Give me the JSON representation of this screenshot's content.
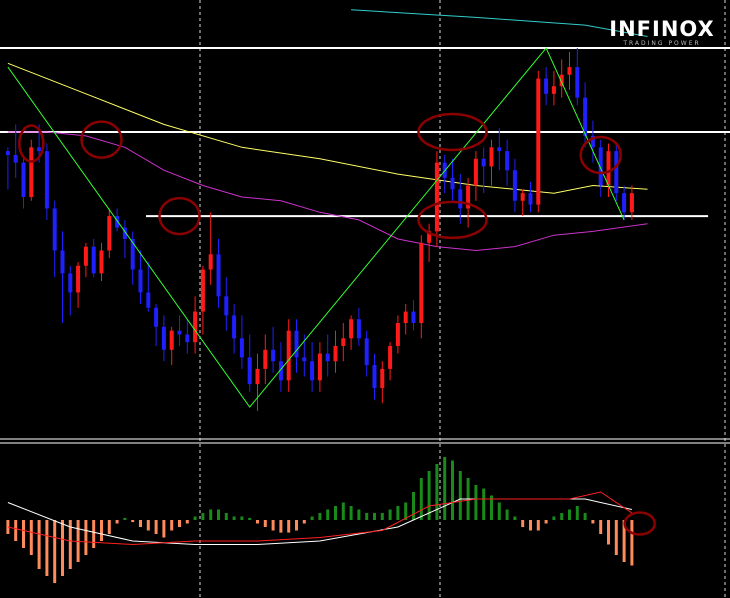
{
  "logo": {
    "brand": "INFINOX",
    "tagline": "TRADING POWER"
  },
  "chart_data": {
    "type": "candlestick",
    "title": "",
    "xlabel": "",
    "ylabel": "",
    "grid": false,
    "colors": {
      "bull": "#ff1a1a",
      "bear": "#2020ff",
      "background": "#000000",
      "level": "#ffffff",
      "zigzag": "#33ff33",
      "ma_fast": "#ffff66",
      "ma_mid": "#cc33cc",
      "ma_slow": "#33cccc",
      "marker": "#8b0000",
      "histogram_pos": "#1a8a1a",
      "histogram_neg": "#ff8a5c",
      "macd": "#ffffff",
      "signal": "#ff2020"
    },
    "price_ylim": [
      0,
      100
    ],
    "candles": [
      [
        73,
        74,
        63,
        72
      ],
      [
        72,
        80,
        66,
        70
      ],
      [
        70,
        72,
        58,
        61
      ],
      [
        61,
        76,
        60,
        74
      ],
      [
        74,
        80,
        70,
        73
      ],
      [
        73,
        75,
        55,
        58
      ],
      [
        58,
        60,
        40,
        47
      ],
      [
        47,
        52,
        28,
        41
      ],
      [
        41,
        43,
        30,
        36
      ],
      [
        36,
        44,
        32,
        43
      ],
      [
        43,
        49,
        40,
        48
      ],
      [
        48,
        50,
        40,
        41
      ],
      [
        41,
        49,
        39,
        47
      ],
      [
        47,
        58,
        45,
        56
      ],
      [
        56,
        58,
        52,
        53
      ],
      [
        53,
        55,
        45,
        50
      ],
      [
        50,
        52,
        38,
        42
      ],
      [
        42,
        47,
        33,
        36
      ],
      [
        36,
        44,
        31,
        32
      ],
      [
        32,
        33,
        22,
        27
      ],
      [
        27,
        30,
        18,
        21
      ],
      [
        21,
        27,
        17,
        26
      ],
      [
        26,
        30,
        22,
        25
      ],
      [
        25,
        29,
        20,
        23
      ],
      [
        23,
        35,
        20,
        31
      ],
      [
        31,
        43,
        25,
        42
      ],
      [
        42,
        57,
        38,
        46
      ],
      [
        46,
        50,
        32,
        35
      ],
      [
        35,
        40,
        26,
        30
      ],
      [
        30,
        33,
        20,
        24
      ],
      [
        24,
        30,
        16,
        19
      ],
      [
        19,
        25,
        10,
        12
      ],
      [
        12,
        20,
        5,
        16
      ],
      [
        16,
        25,
        12,
        21
      ],
      [
        21,
        27,
        15,
        18
      ],
      [
        18,
        23,
        10,
        13
      ],
      [
        13,
        29,
        10,
        26
      ],
      [
        26,
        29,
        15,
        19
      ],
      [
        19,
        25,
        14,
        18
      ],
      [
        18,
        23,
        10,
        13
      ],
      [
        13,
        23,
        10,
        20
      ],
      [
        20,
        25,
        14,
        18
      ],
      [
        18,
        26,
        15,
        22
      ],
      [
        22,
        28,
        18,
        24
      ],
      [
        24,
        30,
        21,
        29
      ],
      [
        29,
        32,
        22,
        24
      ],
      [
        24,
        26,
        14,
        17
      ],
      [
        17,
        20,
        8,
        11
      ],
      [
        11,
        18,
        7,
        16
      ],
      [
        16,
        23,
        13,
        22
      ],
      [
        22,
        30,
        20,
        28
      ],
      [
        28,
        33,
        25,
        31
      ],
      [
        31,
        34,
        26,
        28
      ],
      [
        28,
        51,
        24,
        49
      ],
      [
        49,
        54,
        44,
        52
      ],
      [
        52,
        73,
        48,
        70
      ],
      [
        70,
        72,
        62,
        66
      ],
      [
        66,
        71,
        60,
        63
      ],
      [
        63,
        67,
        54,
        58
      ],
      [
        58,
        66,
        53,
        64
      ],
      [
        64,
        73,
        60,
        71
      ],
      [
        71,
        74,
        62,
        69
      ],
      [
        69,
        76,
        64,
        74
      ],
      [
        74,
        79,
        68,
        73
      ],
      [
        73,
        76,
        64,
        68
      ],
      [
        68,
        71,
        57,
        60
      ],
      [
        60,
        63,
        56,
        62
      ],
      [
        62,
        65,
        57,
        59
      ],
      [
        59,
        94,
        57,
        92
      ],
      [
        92,
        95,
        85,
        88
      ],
      [
        88,
        94,
        85,
        90
      ],
      [
        90,
        97,
        87,
        93
      ],
      [
        93,
        99,
        89,
        95
      ],
      [
        95,
        100,
        85,
        87
      ],
      [
        87,
        91,
        74,
        77
      ],
      [
        77,
        81,
        70,
        74
      ],
      [
        74,
        76,
        61,
        64
      ],
      [
        64,
        75,
        61,
        73
      ],
      [
        73,
        75,
        60,
        62
      ],
      [
        62,
        64,
        55,
        57
      ],
      [
        57,
        64,
        55,
        62
      ]
    ],
    "levels": [
      {
        "value": 100,
        "from": 0,
        "to": 1
      },
      {
        "value": 78,
        "from": 0,
        "to": 1
      },
      {
        "value": 56,
        "from": 0.2,
        "to": 0.97
      }
    ],
    "zigzag_points": [
      [
        0,
        95
      ],
      [
        31,
        6
      ],
      [
        69,
        100
      ],
      [
        79,
        55
      ]
    ],
    "ma_slow": [
      [
        44,
        110
      ],
      [
        60,
        108
      ],
      [
        74,
        106
      ],
      [
        82,
        103
      ]
    ],
    "ma_fast": [
      [
        0,
        96
      ],
      [
        10,
        88
      ],
      [
        20,
        80
      ],
      [
        30,
        74
      ],
      [
        40,
        71
      ],
      [
        50,
        67
      ],
      [
        60,
        64
      ],
      [
        70,
        62
      ],
      [
        75,
        64
      ],
      [
        82,
        63
      ]
    ],
    "ma_mid": [
      [
        0,
        78
      ],
      [
        5,
        78
      ],
      [
        10,
        77
      ],
      [
        15,
        74
      ],
      [
        20,
        68
      ],
      [
        25,
        64
      ],
      [
        30,
        61
      ],
      [
        35,
        60
      ],
      [
        40,
        57
      ],
      [
        45,
        55
      ],
      [
        50,
        50
      ],
      [
        55,
        48
      ],
      [
        60,
        47
      ],
      [
        65,
        48
      ],
      [
        70,
        51
      ],
      [
        75,
        52
      ],
      [
        82,
        54
      ]
    ],
    "markers": [
      [
        3,
        75
      ],
      [
        12,
        76
      ],
      [
        22,
        56
      ],
      [
        57,
        78
      ],
      [
        57,
        55
      ],
      [
        76,
        72
      ]
    ],
    "macd_ylim": [
      -10,
      10
    ],
    "histogram": [
      -2,
      -3,
      -4,
      -5,
      -7,
      -8,
      -9,
      -8,
      -7,
      -6,
      -5,
      -4,
      -3,
      -2,
      -0.5,
      0.3,
      -0.3,
      -1,
      -1.5,
      -2,
      -2.5,
      -1.5,
      -1,
      -0.5,
      0.5,
      1,
      1.5,
      1.5,
      1,
      0.5,
      0.5,
      0.3,
      -0.5,
      -1,
      -1.5,
      -1.8,
      -1.8,
      -1.5,
      -0.5,
      0.5,
      1,
      1.5,
      2,
      2.5,
      2,
      1.5,
      1,
      1,
      1,
      1.5,
      2,
      2.5,
      4,
      6,
      7,
      8,
      9,
      8.5,
      7,
      6,
      5,
      4.5,
      3.5,
      2.5,
      1.5,
      0.5,
      -1,
      -1.5,
      -1.5,
      -0.5,
      0.5,
      1,
      1.5,
      2,
      1,
      -0.5,
      -2,
      -3.5,
      -5,
      -6,
      -6.5
    ],
    "macd_line": [
      [
        0,
        2.5
      ],
      [
        8,
        -1
      ],
      [
        16,
        -3
      ],
      [
        24,
        -3.5
      ],
      [
        32,
        -3.5
      ],
      [
        40,
        -3
      ],
      [
        50,
        -1
      ],
      [
        58,
        3
      ],
      [
        66,
        3
      ],
      [
        74,
        3
      ],
      [
        80,
        1.5
      ]
    ],
    "signal_line": [
      [
        0,
        -1
      ],
      [
        8,
        -3
      ],
      [
        16,
        -3.5
      ],
      [
        24,
        -3
      ],
      [
        32,
        -3
      ],
      [
        40,
        -2.5
      ],
      [
        48,
        -1.5
      ],
      [
        54,
        2
      ],
      [
        60,
        3
      ],
      [
        66,
        3
      ],
      [
        72,
        3
      ],
      [
        76,
        4
      ],
      [
        80,
        1
      ]
    ],
    "macd_marker": [
      81,
      -0.5
    ]
  }
}
